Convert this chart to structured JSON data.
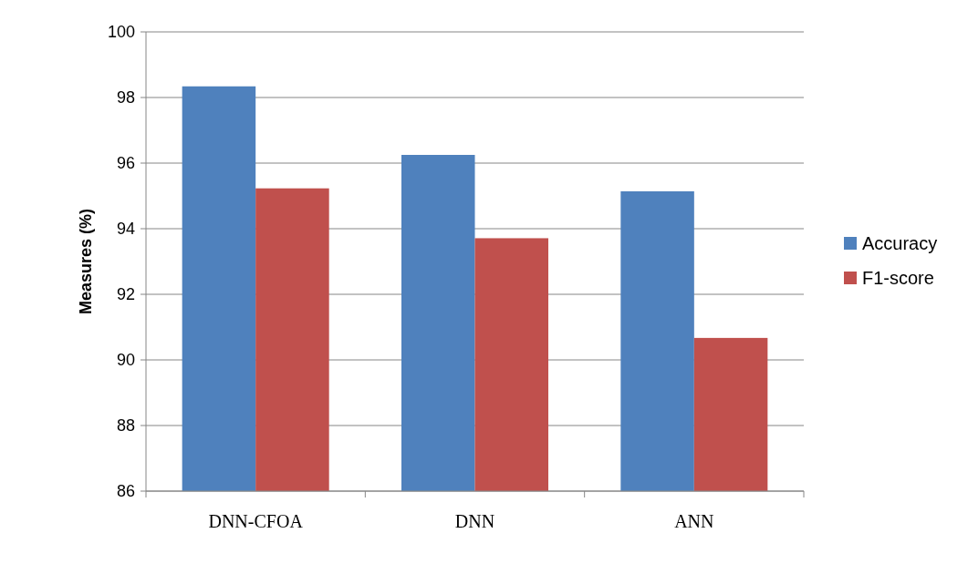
{
  "chart_data": {
    "type": "bar",
    "ylabel": "Measures (%)",
    "categories": [
      "DNN-CFOA",
      "DNN",
      "ANN"
    ],
    "series": [
      {
        "name": "Accuracy",
        "color": "#4f81bd",
        "values": [
          98.34,
          96.25,
          95.14
        ]
      },
      {
        "name": "F1-score",
        "color": "#c0504d",
        "values": [
          95.23,
          93.71,
          90.67
        ]
      }
    ],
    "ylim": [
      86,
      100
    ],
    "yticks": [
      86,
      88,
      90,
      92,
      94,
      96,
      98,
      100
    ],
    "grid": "y",
    "legend": "right"
  }
}
